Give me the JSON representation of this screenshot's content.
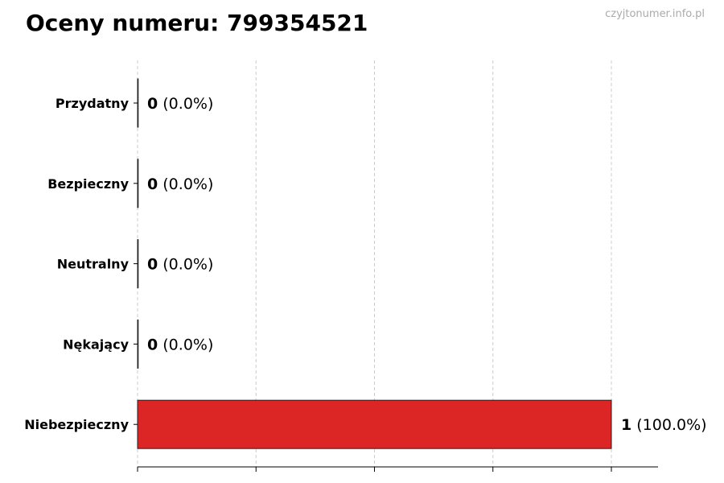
{
  "title": "Oceny numeru: 799354521",
  "watermark": "czyjtonumer.info.pl",
  "chart_data": {
    "type": "bar",
    "orientation": "horizontal",
    "categories": [
      "Przydatny",
      "Bezpieczny",
      "Neutralny",
      "Nękający",
      "Niebezpieczny"
    ],
    "values": [
      0,
      0,
      0,
      0,
      1
    ],
    "value_labels": [
      "0",
      "0",
      "0",
      "0",
      "1"
    ],
    "percent_labels": [
      "(0.0%)",
      "(0.0%)",
      "(0.0%)",
      "(0.0%)",
      "(100.0%)"
    ],
    "colors": [
      "#2ca02c",
      "#1f77b4",
      "#7f7f7f",
      "#ff7f0e",
      "#dc2626"
    ],
    "xlim": [
      0,
      1.1
    ],
    "x_gridlines": [
      0,
      0.25,
      0.5,
      0.75,
      1.0
    ],
    "grid": true,
    "x_tick_labels_shown": false
  }
}
